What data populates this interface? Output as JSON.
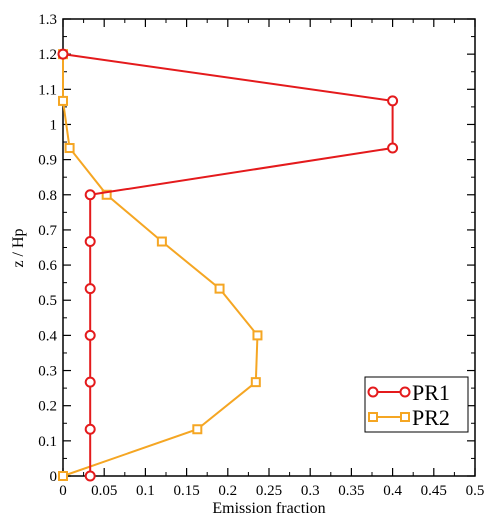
{
  "chart_data": {
    "type": "line",
    "title": "",
    "xlabel": "Emission fraction",
    "ylabel": "z / Hp",
    "xlim": [
      0,
      0.5
    ],
    "ylim": [
      0,
      1.3
    ],
    "xticks": [
      0,
      0.05,
      0.1,
      0.15,
      0.2,
      0.25,
      0.3,
      0.35,
      0.4,
      0.45,
      0.5
    ],
    "xtick_labels": [
      "0",
      "0.05",
      "0.1",
      "0.15",
      "0.2",
      "0.25",
      "0.3",
      "0.35",
      "0.4",
      "0.45",
      "0.5"
    ],
    "yticks": [
      0,
      0.1,
      0.2,
      0.3,
      0.4,
      0.5,
      0.6,
      0.7,
      0.8,
      0.9,
      1,
      1.1,
      1.2,
      1.3
    ],
    "ytick_labels": [
      "0",
      "0.1",
      "0.2",
      "0.3",
      "0.4",
      "0.5",
      "0.6",
      "0.7",
      "0.8",
      "0.9",
      "1",
      "1.1",
      "1.2",
      "1.3"
    ],
    "grid": false,
    "legend_position": "bottom-right",
    "series": [
      {
        "name": "PR1",
        "color": "#e41a1c",
        "marker": "circle",
        "points": [
          {
            "x": 0.033,
            "y": 0.0
          },
          {
            "x": 0.033,
            "y": 0.133
          },
          {
            "x": 0.033,
            "y": 0.267
          },
          {
            "x": 0.033,
            "y": 0.4
          },
          {
            "x": 0.033,
            "y": 0.533
          },
          {
            "x": 0.033,
            "y": 0.667
          },
          {
            "x": 0.033,
            "y": 0.8
          },
          {
            "x": 0.4,
            "y": 0.933
          },
          {
            "x": 0.4,
            "y": 1.067
          },
          {
            "x": 0.0,
            "y": 1.2
          }
        ]
      },
      {
        "name": "PR2",
        "color": "#f5a623",
        "marker": "square",
        "points": [
          {
            "x": 0.0,
            "y": 0.0
          },
          {
            "x": 0.163,
            "y": 0.133
          },
          {
            "x": 0.234,
            "y": 0.267
          },
          {
            "x": 0.236,
            "y": 0.4
          },
          {
            "x": 0.19,
            "y": 0.533
          },
          {
            "x": 0.12,
            "y": 0.667
          },
          {
            "x": 0.053,
            "y": 0.8
          },
          {
            "x": 0.008,
            "y": 0.933
          },
          {
            "x": 0.0,
            "y": 1.067
          },
          {
            "x": 0.0,
            "y": 1.2
          }
        ]
      }
    ]
  }
}
